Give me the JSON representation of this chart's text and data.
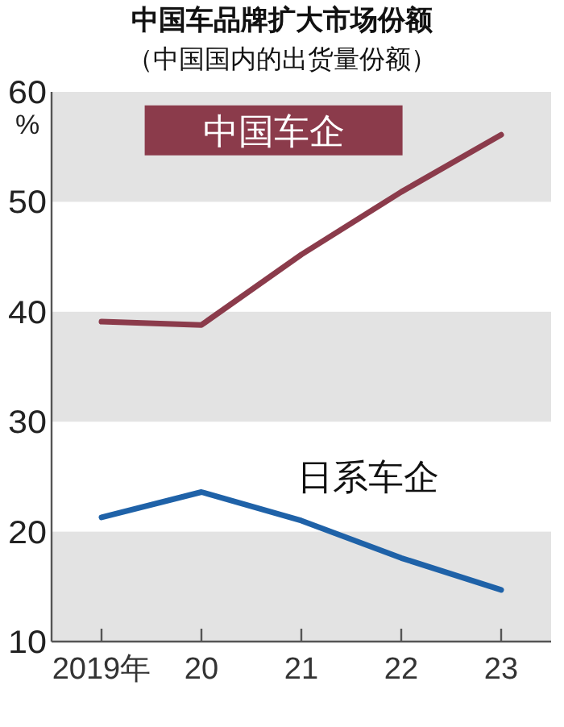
{
  "chart_data": {
    "type": "line",
    "title": "中国车品牌扩大市场份额",
    "subtitle": "（中国国内的出货量份额）",
    "ylabel": "%",
    "categories": [
      "2019年",
      "20",
      "21",
      "22",
      "23"
    ],
    "series": [
      {
        "name": "中国车企",
        "color": "#8b3b4b",
        "values": [
          39.1,
          38.8,
          45.2,
          50.9,
          56.1
        ]
      },
      {
        "name": "日系车企",
        "color": "#1f62a8",
        "values": [
          21.3,
          23.6,
          21.0,
          17.6,
          14.7
        ]
      }
    ],
    "ylim": [
      10,
      60
    ],
    "yticks": [
      10,
      20,
      30,
      40,
      50,
      60
    ],
    "bands": [
      {
        "axis": "y",
        "from": 10,
        "to": 20,
        "color": "#e3e3e3"
      },
      {
        "axis": "y",
        "from": 30,
        "to": 40,
        "color": "#e3e3e3"
      },
      {
        "axis": "y",
        "from": 50,
        "to": 60,
        "color": "#e3e3e3"
      }
    ],
    "grid": false,
    "legend": false,
    "marker": "none",
    "line_style": "solid"
  }
}
